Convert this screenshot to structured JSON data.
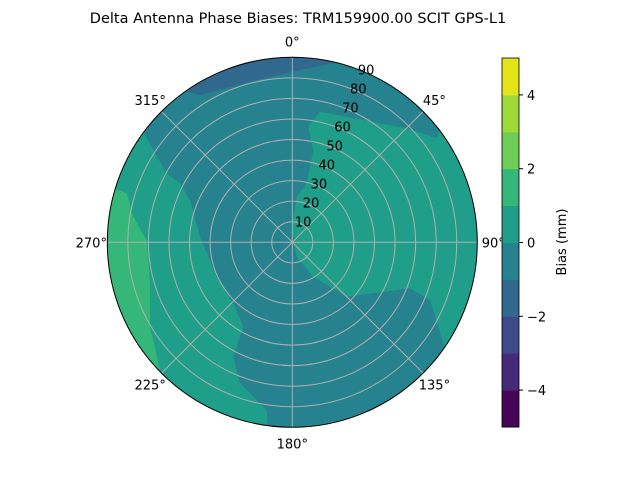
{
  "chart_data": {
    "type": "heatmap",
    "subtype": "polar-contour",
    "title": "Delta Antenna Phase Biases: TRM159900.00    SCIT GPS-L1",
    "angle_ticks": [
      "0°",
      "45°",
      "90°",
      "135°",
      "180°",
      "225°",
      "270°",
      "315°"
    ],
    "radial_ticks": [
      "10",
      "20",
      "30",
      "40",
      "50",
      "60",
      "70",
      "80",
      "90"
    ],
    "radial_range": [
      0,
      90
    ],
    "grid": true,
    "colorbar": {
      "label": "Bias (mm)",
      "range": [
        -5,
        5
      ],
      "levels": [
        -5,
        -4,
        -3,
        -2,
        -1,
        0,
        1,
        2,
        3,
        4,
        5
      ],
      "ticks": [
        "−4",
        "−2",
        "0",
        "2",
        "4"
      ],
      "tick_values": [
        -4,
        -2,
        0,
        2,
        4
      ],
      "colors": [
        "#450559",
        "#482878",
        "#3e4a89",
        "#31688e",
        "#26828e",
        "#1f9e89",
        "#35b779",
        "#6ece58",
        "#a0da39",
        "#e5e419"
      ],
      "colormap": "viridis"
    },
    "regions": [
      {
        "range": [
          -1,
          0
        ],
        "where": "most of the dish, center and lower right"
      },
      {
        "range": [
          0,
          1
        ],
        "where": "upper right (30°–150°) and left side"
      },
      {
        "range": [
          1,
          2
        ],
        "where": "far left edge near 250°–290°"
      },
      {
        "range": [
          -2,
          -1
        ],
        "where": "top edge near 330°–5°"
      }
    ]
  }
}
